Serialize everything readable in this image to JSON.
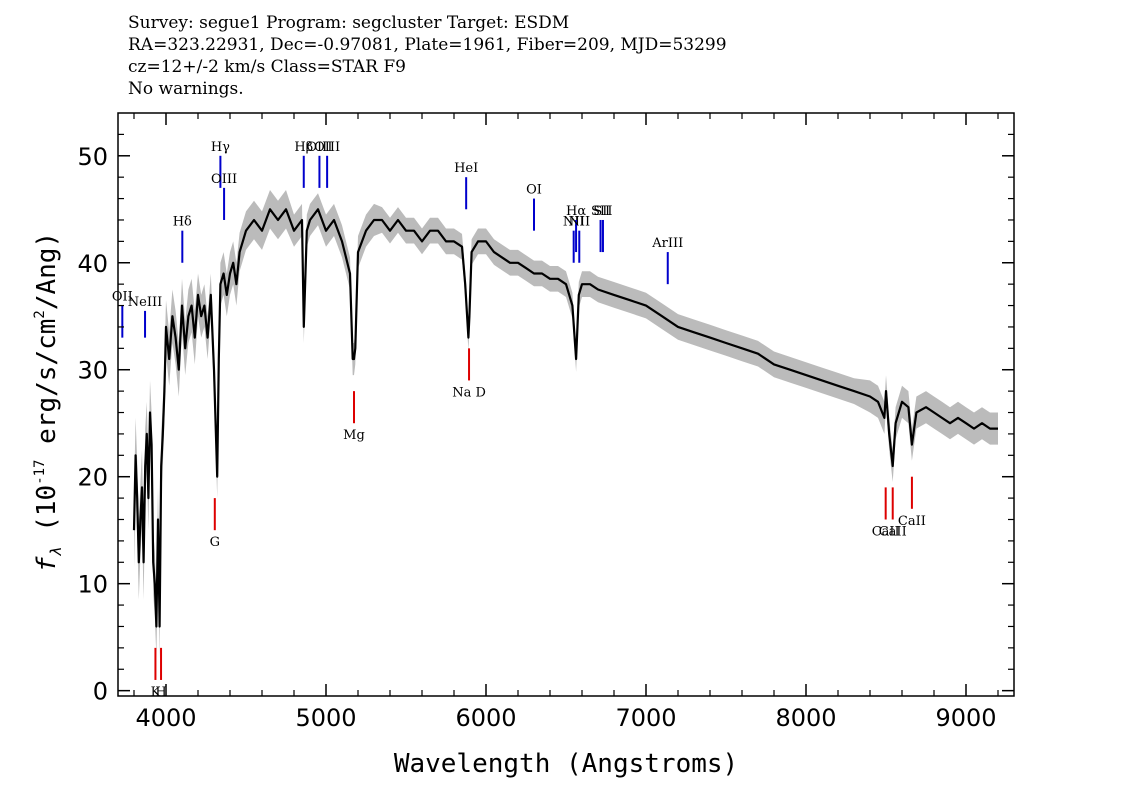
{
  "header": {
    "line1": "Survey: segue1 Program: segcluster Target: ESDM",
    "line2": "RA=323.22931, Dec=-0.97081, Plate=1961, Fiber=209, MJD=53299",
    "line3": "cz=12+/-2 km/s Class=STAR F9",
    "line4": "No warnings."
  },
  "chart_data": {
    "type": "line",
    "title": "",
    "xlabel": "Wavelength (Angstroms)",
    "ylabel": "f_λ (10^-17 erg/s/cm^2/Ang)",
    "xlim": [
      3700,
      9300
    ],
    "ylim": [
      -0.5,
      54
    ],
    "xticks": [
      4000,
      5000,
      6000,
      7000,
      8000,
      9000
    ],
    "yticks": [
      0,
      10,
      20,
      30,
      40,
      50
    ],
    "grid": false,
    "colors": {
      "spectrum": "#000000",
      "error_band": "#bbbbbb",
      "emission": "#0000cc",
      "absorption": "#dd0000"
    },
    "spectrum": {
      "x": [
        3800,
        3810,
        3820,
        3830,
        3840,
        3850,
        3860,
        3870,
        3880,
        3890,
        3900,
        3910,
        3920,
        3930,
        3940,
        3950,
        3960,
        3970,
        3980,
        3990,
        4000,
        4020,
        4040,
        4060,
        4080,
        4100,
        4120,
        4140,
        4160,
        4180,
        4200,
        4220,
        4240,
        4260,
        4280,
        4300,
        4310,
        4320,
        4330,
        4340,
        4360,
        4380,
        4400,
        4420,
        4440,
        4460,
        4480,
        4500,
        4550,
        4600,
        4650,
        4700,
        4750,
        4800,
        4850,
        4861,
        4880,
        4900,
        4950,
        5000,
        5050,
        5100,
        5150,
        5167,
        5175,
        5183,
        5200,
        5250,
        5300,
        5350,
        5400,
        5450,
        5500,
        5550,
        5600,
        5650,
        5700,
        5750,
        5800,
        5850,
        5870,
        5890,
        5896,
        5910,
        5950,
        6000,
        6050,
        6100,
        6150,
        6200,
        6250,
        6300,
        6350,
        6400,
        6450,
        6500,
        6540,
        6563,
        6580,
        6600,
        6650,
        6700,
        6800,
        6900,
        7000,
        7100,
        7200,
        7300,
        7400,
        7500,
        7600,
        7700,
        7800,
        7900,
        8000,
        8100,
        8200,
        8300,
        8400,
        8450,
        8490,
        8500,
        8520,
        8542,
        8560,
        8600,
        8640,
        8662,
        8690,
        8750,
        8800,
        8850,
        8900,
        8950,
        9000,
        9050,
        9100,
        9150,
        9200
      ],
      "y": [
        15,
        22,
        18,
        12,
        16,
        19,
        12,
        21,
        24,
        18,
        26,
        23,
        12,
        10,
        6,
        16,
        6,
        21,
        24,
        28,
        34,
        31,
        35,
        33,
        30,
        36,
        32,
        35,
        36,
        33,
        37,
        35,
        36,
        33,
        37,
        30,
        25,
        20,
        31,
        38,
        39,
        37,
        39,
        40,
        38,
        41,
        42,
        43,
        44,
        43,
        45,
        44,
        45,
        43,
        44,
        34,
        43,
        44,
        45,
        43,
        44,
        42,
        39,
        31,
        31,
        32,
        41,
        43,
        44,
        44,
        43,
        44,
        43,
        43,
        42,
        43,
        43,
        42,
        42,
        41.5,
        38,
        33,
        35,
        41,
        42,
        42,
        41,
        40.5,
        40,
        40,
        39.5,
        39,
        39,
        38.5,
        38.5,
        38,
        36,
        31,
        37,
        38,
        38,
        37.5,
        37,
        36.5,
        36,
        35,
        34,
        33.5,
        33,
        32.5,
        32,
        31.5,
        30.5,
        30,
        29.5,
        29,
        28.5,
        28,
        27.5,
        27,
        25.5,
        28,
        24,
        21,
        25,
        27,
        26.5,
        23,
        26,
        26.5,
        26,
        25.5,
        25,
        25.5,
        25,
        24.5,
        25,
        24.5,
        24.5
      ],
      "errors": [
        3.5,
        3.5,
        3.5,
        3.5,
        3.5,
        3.5,
        3.5,
        3.5,
        3,
        3,
        3,
        3,
        3,
        3,
        3,
        3,
        3,
        3,
        3,
        3,
        2.5,
        2.5,
        2.5,
        2.5,
        2.5,
        2.5,
        2.5,
        2.5,
        2.5,
        2.5,
        2,
        2,
        2,
        2,
        2,
        2,
        2,
        2,
        2,
        2,
        2,
        2,
        2,
        2,
        2,
        1.8,
        1.8,
        1.8,
        1.8,
        1.8,
        1.8,
        1.8,
        1.8,
        1.5,
        1.5,
        1.5,
        1.5,
        1.5,
        1.5,
        1.5,
        1.5,
        1.5,
        1.5,
        1.5,
        1.5,
        1.5,
        1.5,
        1.5,
        1.5,
        1.2,
        1.2,
        1.2,
        1.2,
        1.2,
        1.2,
        1.2,
        1.2,
        1.2,
        1.2,
        1.2,
        1.2,
        1.2,
        1.2,
        1.2,
        1.2,
        1.2,
        1.2,
        1.2,
        1.2,
        1.2,
        1.2,
        1.2,
        1.2,
        1.2,
        1.2,
        1.2,
        1.2,
        1.2,
        1.2,
        1.2,
        1.2,
        1.2,
        1.2,
        1.2,
        1.2,
        1.2,
        1.2,
        1.2,
        1.2,
        1.2,
        1.2,
        1.2,
        1.2,
        1.2,
        1.2,
        1.2,
        1.2,
        1.2,
        1.5,
        1.5,
        1.5,
        1.5,
        1.5,
        1.5,
        1.5,
        1.5,
        1.5,
        1.5,
        1.5,
        1.5,
        1.5,
        1.5,
        1.5,
        1.5,
        1.5,
        1.5,
        1.5,
        1.5,
        1.5
      ]
    },
    "emission_lines": [
      {
        "label": "OII",
        "x": 3727,
        "y0": 33,
        "y1": 36
      },
      {
        "label": "NeIII",
        "x": 3869,
        "y0": 33,
        "y1": 35.5
      },
      {
        "label": "Hδ",
        "x": 4102,
        "y0": 40,
        "y1": 43
      },
      {
        "label": "Hγ",
        "x": 4340,
        "y0": 47,
        "y1": 50
      },
      {
        "label": "OIII",
        "x": 4363,
        "y0": 44,
        "y1": 47
      },
      {
        "label": "Hβ",
        "x": 4861,
        "y0": 47,
        "y1": 50
      },
      {
        "label": "OIII",
        "x": 4959,
        "y0": 47,
        "y1": 50
      },
      {
        "label": "OIII",
        "x": 5007,
        "y0": 47,
        "y1": 50
      },
      {
        "label": "HeI",
        "x": 5876,
        "y0": 45,
        "y1": 48
      },
      {
        "label": "OI",
        "x": 6300,
        "y0": 43,
        "y1": 46
      },
      {
        "label": "NII",
        "x": 6548,
        "y0": 40,
        "y1": 43
      },
      {
        "label": "Hα",
        "x": 6563,
        "y0": 41,
        "y1": 44
      },
      {
        "label": "NII",
        "x": 6583,
        "y0": 40,
        "y1": 43
      },
      {
        "label": "SII",
        "x": 6716,
        "y0": 41,
        "y1": 44
      },
      {
        "label": "SII",
        "x": 6731,
        "y0": 41,
        "y1": 44
      },
      {
        "label": "ArIII",
        "x": 7136,
        "y0": 38,
        "y1": 41
      }
    ],
    "absorption_lines": [
      {
        "label": "K",
        "x": 3934,
        "y0": 1,
        "y1": 4
      },
      {
        "label": "H",
        "x": 3969,
        "y0": 1,
        "y1": 4
      },
      {
        "label": "G",
        "x": 4305,
        "y0": 15,
        "y1": 18
      },
      {
        "label": "Mg",
        "x": 5175,
        "y0": 25,
        "y1": 28
      },
      {
        "label": "Na D",
        "x": 5894,
        "y0": 29,
        "y1": 32
      },
      {
        "label": "CaII",
        "x": 8498,
        "y0": 16,
        "y1": 19
      },
      {
        "label": "CaII",
        "x": 8542,
        "y0": 16,
        "y1": 19
      },
      {
        "label": "CaII",
        "x": 8662,
        "y0": 17,
        "y1": 20
      }
    ]
  }
}
